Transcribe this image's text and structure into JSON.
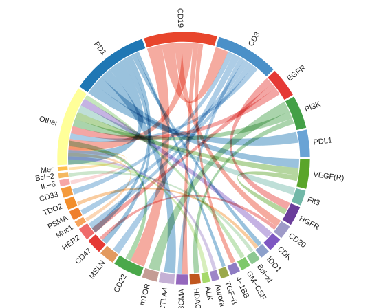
{
  "chart_data": {
    "type": "chord",
    "title": "",
    "groups": [
      {
        "name": "PD1",
        "value": 71,
        "color": "#1f77b4"
      },
      {
        "name": "CD19",
        "value": 66,
        "color": "#e8452c"
      },
      {
        "name": "CD3",
        "value": 57,
        "color": "#4a90c8"
      },
      {
        "name": "EGFR",
        "value": 27,
        "color": "#e53935"
      },
      {
        "name": "PI3K",
        "value": 30,
        "color": "#43a047"
      },
      {
        "name": "PDL1",
        "value": 25,
        "color": "#6aa3d5"
      },
      {
        "name": "VEGF(R)",
        "value": 27,
        "color": "#5aa52a"
      },
      {
        "name": "Flt3",
        "value": 14,
        "color": "#72b8a8"
      },
      {
        "name": "HGFR",
        "value": 18,
        "color": "#6a3d9a"
      },
      {
        "name": "CD20",
        "value": 13,
        "color": "#9e9ac8"
      },
      {
        "name": "CDK",
        "value": 13,
        "color": "#7e57c2"
      },
      {
        "name": "IDO1",
        "value": 9,
        "color": "#8da0cb"
      },
      {
        "name": "Bcl−xl",
        "value": 9,
        "color": "#8dc891"
      },
      {
        "name": "GM−CSF",
        "value": 9,
        "color": "#7ec86a"
      },
      {
        "name": "4−1BB",
        "value": 9,
        "color": "#8e7cc3"
      },
      {
        "name": "TGF−ß",
        "value": 8,
        "color": "#9aa84a"
      },
      {
        "name": "Aurora B",
        "value": 7,
        "color": "#9e86c8"
      },
      {
        "name": "ALK",
        "value": 7,
        "color": "#a6d96a"
      },
      {
        "name": "HDAC",
        "value": 10,
        "color": "#c0561e"
      },
      {
        "name": "BCMA",
        "value": 11,
        "color": "#9467bd"
      },
      {
        "name": "CTLA4",
        "value": 14,
        "color": "#c5b0d5"
      },
      {
        "name": "mTOR",
        "value": 14,
        "color": "#c49c94"
      },
      {
        "name": "CD22",
        "value": 26,
        "color": "#4aa84a"
      },
      {
        "name": "MSLN",
        "value": 14,
        "color": "#e39a5f"
      },
      {
        "name": "CD47",
        "value": 14,
        "color": "#e53935"
      },
      {
        "name": "HER2",
        "value": 12,
        "color": "#ef6b6b"
      },
      {
        "name": "Muc1",
        "value": 6,
        "color": "#f7a35c"
      },
      {
        "name": "PSMA",
        "value": 9,
        "color": "#ef7f2e"
      },
      {
        "name": "TDO2",
        "value": 10,
        "color": "#f28e2b"
      },
      {
        "name": "CD33",
        "value": 9,
        "color": "#f49a3c"
      },
      {
        "name": "IL−6",
        "value": 6,
        "color": "#f6a6a6"
      },
      {
        "name": "Bcl−2",
        "value": 5,
        "color": "#f4b860"
      },
      {
        "name": "Mer",
        "value": 4,
        "color": "#ffc04d"
      },
      {
        "name": "Other",
        "value": 72,
        "color": "#ffff99"
      }
    ],
    "links": [
      [
        "PD1",
        "PDL1",
        12
      ],
      [
        "PD1",
        "VEGF(R)",
        10
      ],
      [
        "PD1",
        "CTLA4",
        12
      ],
      [
        "PD1",
        "Other",
        16
      ],
      [
        "PD1",
        "CD47",
        6
      ],
      [
        "PD1",
        "HER2",
        6
      ],
      [
        "PD1",
        "IDO1",
        5
      ],
      [
        "PD1",
        "TGF−ß",
        4
      ],
      [
        "CD19",
        "CD22",
        16
      ],
      [
        "CD19",
        "CD3",
        14
      ],
      [
        "CD19",
        "CD20",
        8
      ],
      [
        "CD19",
        "Other",
        12
      ],
      [
        "CD19",
        "BCMA",
        6
      ],
      [
        "CD19",
        "4−1BB",
        5
      ],
      [
        "CD3",
        "CD33",
        6
      ],
      [
        "CD3",
        "MSLN",
        8
      ],
      [
        "CD3",
        "BCMA",
        5
      ],
      [
        "CD3",
        "PSMA",
        6
      ],
      [
        "CD3",
        "HER2",
        6
      ],
      [
        "CD3",
        "Other",
        6
      ],
      [
        "EGFR",
        "HGFR",
        8
      ],
      [
        "EGFR",
        "HER2",
        6
      ],
      [
        "EGFR",
        "Other",
        8
      ],
      [
        "PI3K",
        "mTOR",
        12
      ],
      [
        "PI3K",
        "Other",
        8
      ],
      [
        "PI3K",
        "HDAC",
        6
      ],
      [
        "VEGF(R)",
        "Other",
        8
      ],
      [
        "VEGF(R)",
        "HGFR",
        6
      ],
      [
        "Flt3",
        "Other",
        8
      ],
      [
        "CDK",
        "Other",
        8
      ],
      [
        "Bcl−xl",
        "Bcl−2",
        4
      ],
      [
        "GM−CSF",
        "Other",
        5
      ],
      [
        "ALK",
        "Other",
        5
      ],
      [
        "Aurora B",
        "Other",
        4
      ],
      [
        "CD47",
        "CD20",
        4
      ],
      [
        "TDO2",
        "IDO1",
        4
      ],
      [
        "Muc1",
        "Other",
        4
      ],
      [
        "IL−6",
        "Other",
        4
      ],
      [
        "Mer",
        "Other",
        3
      ],
      [
        "CD22",
        "Other",
        6
      ]
    ]
  }
}
